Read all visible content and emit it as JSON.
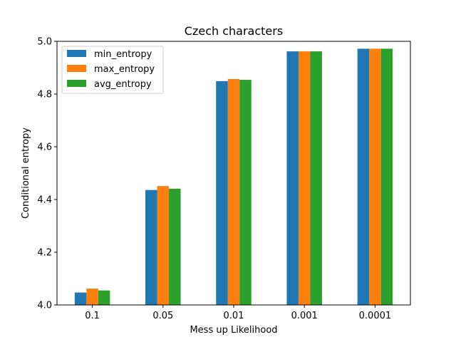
{
  "chart_data": {
    "type": "bar",
    "title": "Czech characters",
    "xlabel": "Mess up Likelihood",
    "ylabel": "Conditional entropy",
    "categories": [
      "0.1",
      "0.05",
      "0.01",
      "0.001",
      "0.0001"
    ],
    "ylim": [
      4.0,
      5.0
    ],
    "yticks": [
      "4.0",
      "4.2",
      "4.4",
      "4.6",
      "4.8",
      "5.0"
    ],
    "grid": false,
    "legend_position": "top-left",
    "series": [
      {
        "name": "min_entropy",
        "color": "#1f77b4",
        "values": [
          4.047,
          4.436,
          4.849,
          4.962,
          4.972
        ]
      },
      {
        "name": "max_entropy",
        "color": "#ff7f0e",
        "values": [
          4.062,
          4.451,
          4.857,
          4.962,
          4.972
        ]
      },
      {
        "name": "avg_entropy",
        "color": "#2ca02c",
        "values": [
          4.055,
          4.441,
          4.854,
          4.962,
          4.972
        ]
      }
    ]
  }
}
